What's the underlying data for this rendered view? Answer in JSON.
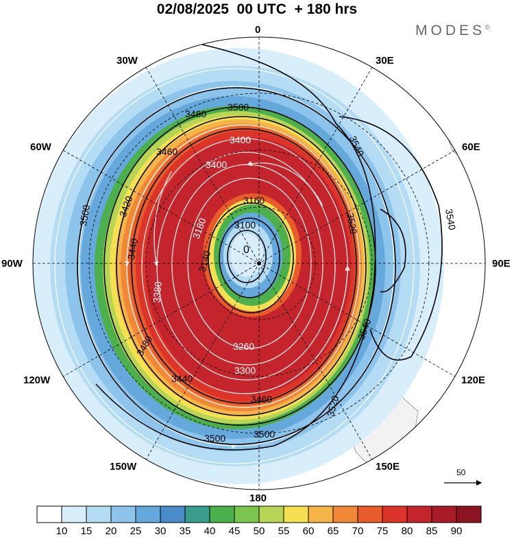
{
  "title": "02/08/2025  00 UTC  + 180 hrs",
  "brand": "MODES",
  "brand_mark": "©",
  "longitude_labels": {
    "top": "0",
    "e30": "30E",
    "e60": "60E",
    "e90": "90E",
    "e120": "120E",
    "e150": "150E",
    "bottom": "180",
    "w150": "150W",
    "w120": "120W",
    "w90": "90W",
    "w60": "60W",
    "w30": "30W"
  },
  "contour_labels": [
    "3500",
    "3480",
    "3460",
    "3440",
    "3420",
    "3400",
    "3180",
    "3160",
    "3140",
    "3100",
    "3520",
    "3540",
    "3500",
    "3480",
    "3460",
    "3440",
    "3500",
    "3500",
    "3520",
    "3540",
    "3540",
    "3260",
    "3300",
    "3400",
    "3380"
  ],
  "low_center_label": "0",
  "wind_vector_reference": "50",
  "colorbar": {
    "ticks": [
      "10",
      "15",
      "20",
      "25",
      "30",
      "35",
      "40",
      "45",
      "50",
      "55",
      "60",
      "65",
      "70",
      "75",
      "80",
      "85",
      "90"
    ],
    "colors": [
      "#ffffff",
      "#d8eefa",
      "#b4dcf4",
      "#8cc4ec",
      "#64a8dc",
      "#4a8cc8",
      "#3a9c8c",
      "#4cb04c",
      "#7cc450",
      "#b8d454",
      "#f4e050",
      "#f4b448",
      "#f08838",
      "#e85c2c",
      "#dc3428",
      "#c4242c",
      "#a81c28",
      "#8c1420"
    ]
  },
  "colors": {
    "jet_core": "#b41c24",
    "land": "#f2f2f2",
    "ocean": "#ffffff"
  }
}
